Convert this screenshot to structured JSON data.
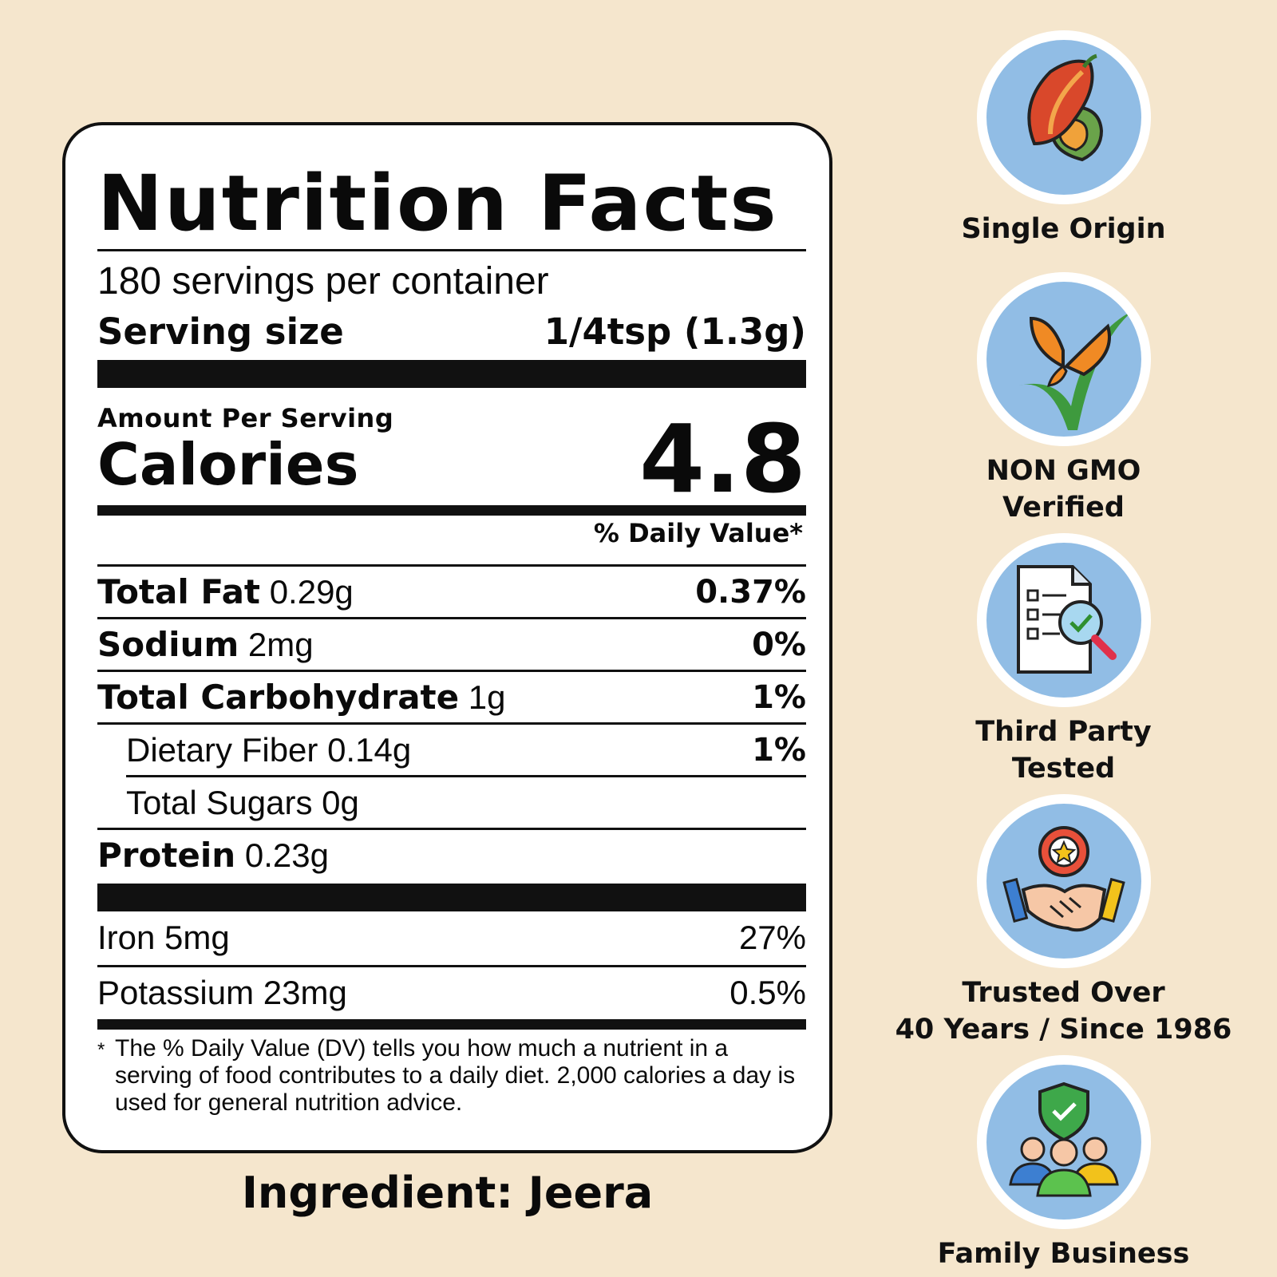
{
  "label": {
    "title": "Nutrition Facts",
    "servings": "180 servings per container",
    "serving_size_label": "Serving size",
    "serving_size_value": "1/4tsp (1.3g)",
    "amount_per_serving": "Amount Per Serving",
    "calories_label": "Calories",
    "calories_value": "4.8",
    "dv_header": "% Daily Value*",
    "rows": [
      {
        "name": "Total Fat",
        "amount": "0.29g",
        "pct": "0.37%"
      },
      {
        "name": "Sodium",
        "amount": "2mg",
        "pct": "0%"
      },
      {
        "name": "Total Carbohydrate",
        "amount": "1g",
        "pct": "1%"
      },
      {
        "name": "Dietary Fiber",
        "amount": "0.14g",
        "pct": "1%"
      },
      {
        "name": "Total Sugars",
        "amount": "0g",
        "pct": ""
      },
      {
        "name": "Protein",
        "amount": "0.23g",
        "pct": ""
      },
      {
        "name": "Iron",
        "amount": "5mg",
        "pct": "27%"
      },
      {
        "name": "Potassium",
        "amount": "23mg",
        "pct": "0.5%"
      }
    ],
    "footnote_star": "*",
    "footnote": "The % Daily Value (DV) tells you how much a nutrient in a serving of food contributes to a daily diet. 2,000 calories a day is used for general nutrition advice."
  },
  "ingredient": "Ingredient: Jeera",
  "badges": [
    {
      "icon": "cocoa-pod-icon",
      "line1": "Single Origin",
      "line2": ""
    },
    {
      "icon": "butterfly-check-icon",
      "line1": "NON GMO",
      "line2": "Verified"
    },
    {
      "icon": "checklist-magnifier-icon",
      "line1": "Third Party",
      "line2": "Tested"
    },
    {
      "icon": "handshake-award-icon",
      "line1": "Trusted Over",
      "line2": "40 Years / Since 1986"
    },
    {
      "icon": "family-shield-icon",
      "line1": "Family Business",
      "line2": ""
    }
  ],
  "colors": {
    "background": "#f5e6cd",
    "badge_circle": "#91bde5"
  }
}
